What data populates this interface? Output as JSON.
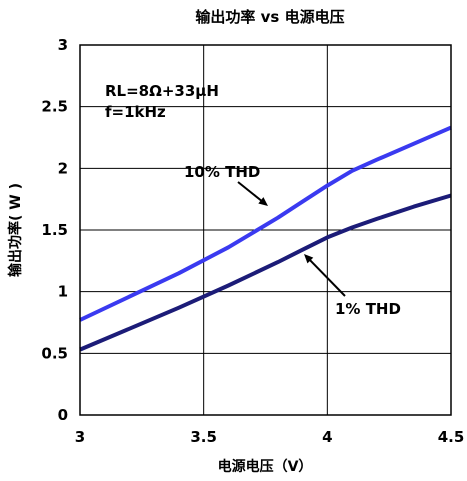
{
  "chart_data": {
    "type": "line",
    "title": "输出功率 vs 电源电压",
    "xlabel": "电源电压（V）",
    "ylabel": "输出功率( W )",
    "xlim": [
      3,
      4.5
    ],
    "ylim": [
      0,
      3
    ],
    "x_ticks": [
      "3",
      "3.5",
      "4",
      "4.5"
    ],
    "y_ticks": [
      "0",
      "0.5",
      "1",
      "1.5",
      "2",
      "2.5",
      "3"
    ],
    "grid": true,
    "annotations": [
      "RL=8Ω+33μH",
      "f=1kHz"
    ],
    "series": [
      {
        "name": "10% THD",
        "color": "#3a3af0",
        "x": [
          3.0,
          3.2,
          3.4,
          3.6,
          3.8,
          3.9,
          4.0,
          4.1,
          4.2,
          4.35,
          4.5
        ],
        "y": [
          0.77,
          0.96,
          1.15,
          1.36,
          1.6,
          1.73,
          1.86,
          1.98,
          2.07,
          2.2,
          2.33
        ]
      },
      {
        "name": "1% THD",
        "color": "#1c1c78",
        "x": [
          3.0,
          3.2,
          3.4,
          3.6,
          3.8,
          3.9,
          4.0,
          4.1,
          4.2,
          4.35,
          4.5
        ],
        "y": [
          0.53,
          0.7,
          0.87,
          1.05,
          1.24,
          1.34,
          1.44,
          1.52,
          1.59,
          1.69,
          1.78
        ]
      }
    ]
  }
}
